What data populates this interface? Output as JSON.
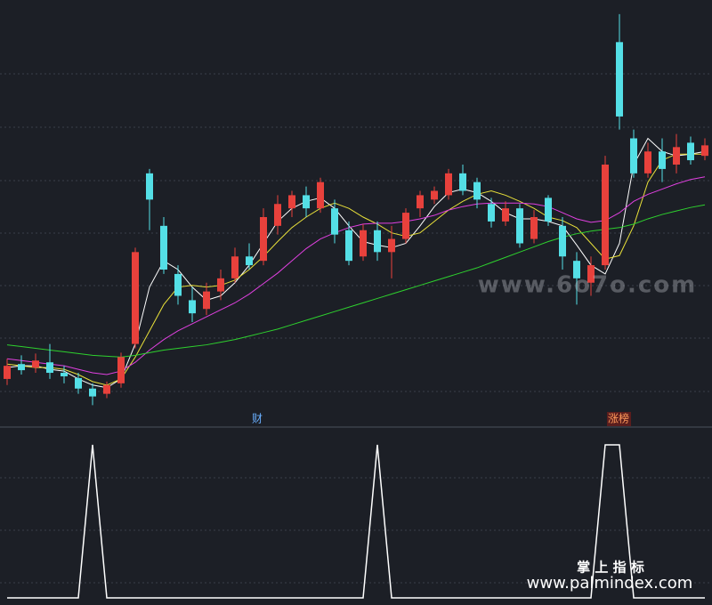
{
  "chart_data": [
    {
      "type": "candlestick",
      "open": [
        55,
        72,
        68,
        74,
        62,
        56,
        44,
        38,
        50,
        95,
        290,
        230,
        175,
        145,
        135,
        155,
        170,
        195,
        190,
        230,
        250,
        265,
        250,
        250,
        225,
        195,
        225,
        200,
        215,
        250,
        260,
        265,
        290,
        280,
        255,
        235,
        250,
        215,
        262,
        230,
        190,
        165,
        185,
        440,
        330,
        290,
        315,
        300,
        325,
        310
      ],
      "high": [
        78,
        82,
        84,
        95,
        70,
        62,
        50,
        52,
        85,
        205,
        295,
        240,
        185,
        160,
        165,
        180,
        205,
        210,
        250,
        265,
        270,
        275,
        285,
        260,
        235,
        232,
        235,
        230,
        250,
        270,
        275,
        295,
        300,
        285,
        262,
        258,
        255,
        248,
        265,
        240,
        200,
        195,
        310,
        472,
        340,
        325,
        330,
        335,
        332,
        330
      ],
      "low": [
        48,
        60,
        62,
        55,
        50,
        38,
        25,
        33,
        45,
        90,
        225,
        175,
        140,
        120,
        128,
        145,
        165,
        180,
        185,
        220,
        240,
        240,
        245,
        210,
        185,
        190,
        190,
        170,
        210,
        240,
        255,
        260,
        265,
        250,
        228,
        230,
        205,
        210,
        230,
        180,
        140,
        150,
        180,
        340,
        285,
        285,
        280,
        290,
        300,
        305
      ],
      "close": [
        70,
        65,
        76,
        62,
        58,
        44,
        35,
        48,
        80,
        200,
        260,
        180,
        150,
        130,
        155,
        170,
        195,
        185,
        240,
        255,
        265,
        250,
        280,
        220,
        190,
        225,
        200,
        215,
        245,
        265,
        270,
        290,
        270,
        260,
        235,
        250,
        210,
        240,
        235,
        195,
        170,
        185,
        300,
        355,
        290,
        315,
        295,
        320,
        305,
        322
      ],
      "ylim": [
        0,
        480
      ],
      "up_color": "#e8413c",
      "down_color": "#54dfe6",
      "lines": [
        {
          "color": "#ffffff",
          "values": [
            68,
            70,
            70,
            66,
            64,
            55,
            48,
            45,
            55,
            95,
            160,
            190,
            180,
            160,
            145,
            150,
            165,
            185,
            210,
            235,
            250,
            258,
            262,
            250,
            230,
            212,
            208,
            205,
            210,
            230,
            252,
            268,
            272,
            268,
            258,
            245,
            238,
            238,
            235,
            230,
            208,
            185,
            175,
            210,
            300,
            330,
            315,
            310,
            312,
            315
          ]
        },
        {
          "color": "#e8e03a",
          "values": [
            72,
            70,
            68,
            68,
            66,
            60,
            52,
            48,
            55,
            80,
            110,
            140,
            160,
            162,
            160,
            162,
            168,
            180,
            195,
            212,
            228,
            240,
            250,
            256,
            250,
            240,
            232,
            222,
            218,
            222,
            235,
            248,
            258,
            266,
            270,
            265,
            258,
            250,
            240,
            236,
            228,
            210,
            192,
            196,
            230,
            280,
            305,
            312,
            312,
            312
          ]
        },
        {
          "color": "#e040e0",
          "values": [
            78,
            76,
            74,
            72,
            70,
            66,
            62,
            60,
            64,
            74,
            88,
            100,
            110,
            118,
            126,
            134,
            142,
            152,
            164,
            176,
            190,
            204,
            215,
            222,
            228,
            232,
            233,
            233,
            235,
            238,
            242,
            248,
            252,
            255,
            256,
            256,
            256,
            255,
            252,
            245,
            238,
            234,
            236,
            245,
            258,
            266,
            272,
            278,
            283,
            286
          ]
        },
        {
          "color": "#2ed12e",
          "values": [
            94,
            92,
            90,
            88,
            86,
            84,
            82,
            81,
            80,
            82,
            85,
            88,
            90,
            92,
            94,
            97,
            100,
            104,
            108,
            112,
            117,
            122,
            127,
            132,
            137,
            142,
            147,
            152,
            157,
            162,
            167,
            172,
            177,
            182,
            188,
            194,
            200,
            206,
            212,
            217,
            221,
            224,
            226,
            228,
            232,
            238,
            243,
            247,
            251,
            254
          ]
        }
      ]
    },
    {
      "type": "line",
      "color": "#ffffff",
      "ylim": [
        0,
        1
      ],
      "values": [
        0,
        0,
        0,
        0,
        0,
        0,
        1,
        0,
        0,
        0,
        0,
        0,
        0,
        0,
        0,
        0,
        0,
        0,
        0,
        0,
        0,
        0,
        0,
        0,
        0,
        0,
        1,
        0,
        0,
        0,
        0,
        0,
        0,
        0,
        0,
        0,
        0,
        0,
        0,
        0,
        0,
        0,
        1,
        1,
        0,
        0,
        0,
        0,
        0,
        0
      ]
    }
  ],
  "markers": [
    "财",
    "涨榜"
  ],
  "watermark": "www.6o7o.com",
  "footer": {
    "title": "掌 上 指 标",
    "url": "www.palmindex.com"
  }
}
